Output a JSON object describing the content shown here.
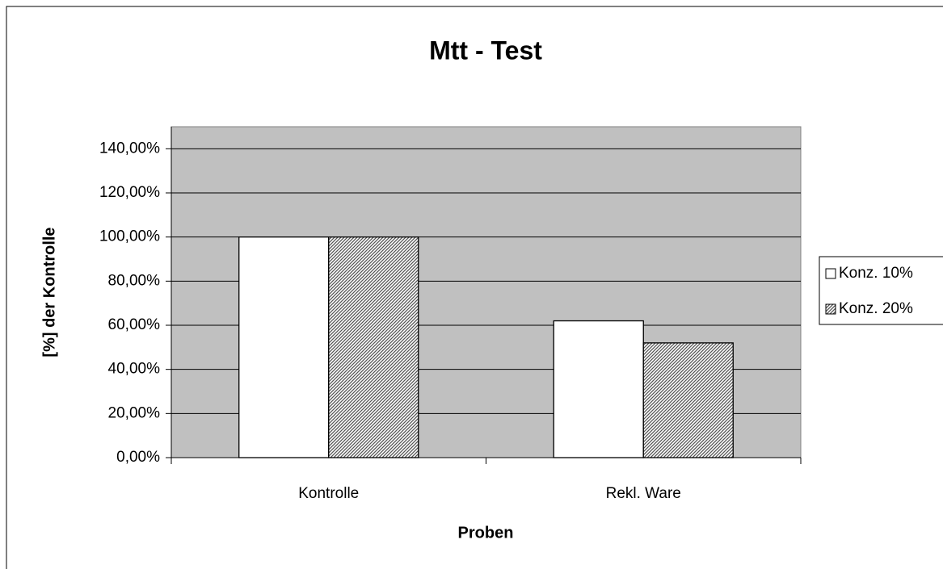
{
  "chart_data": {
    "type": "bar",
    "title": "Mtt - Test",
    "x_label": "Proben",
    "y_label": "[%] der Kontrolle",
    "categories": [
      "Kontrolle",
      "Rekl. Ware"
    ],
    "series": [
      {
        "name": "Konz. 10%",
        "color": "#ffffff",
        "fill_pattern": "solid",
        "values": [
          100,
          62
        ]
      },
      {
        "name": "Konz. 20%",
        "color": "#555555",
        "fill_pattern": "diagonal",
        "values": [
          100,
          52
        ]
      }
    ],
    "ylim": [
      0,
      150
    ],
    "yticks": [
      {
        "value": 0,
        "label": "0,00%"
      },
      {
        "value": 20,
        "label": "20,00%"
      },
      {
        "value": 40,
        "label": "40,00%"
      },
      {
        "value": 60,
        "label": "60,00%"
      },
      {
        "value": 80,
        "label": "80,00%"
      },
      {
        "value": 100,
        "label": "100,00%"
      },
      {
        "value": 120,
        "label": "120,00%"
      },
      {
        "value": 140,
        "label": "140,00%"
      }
    ],
    "grid": true,
    "plot_background": "#c0c0c0",
    "legend": "right"
  }
}
